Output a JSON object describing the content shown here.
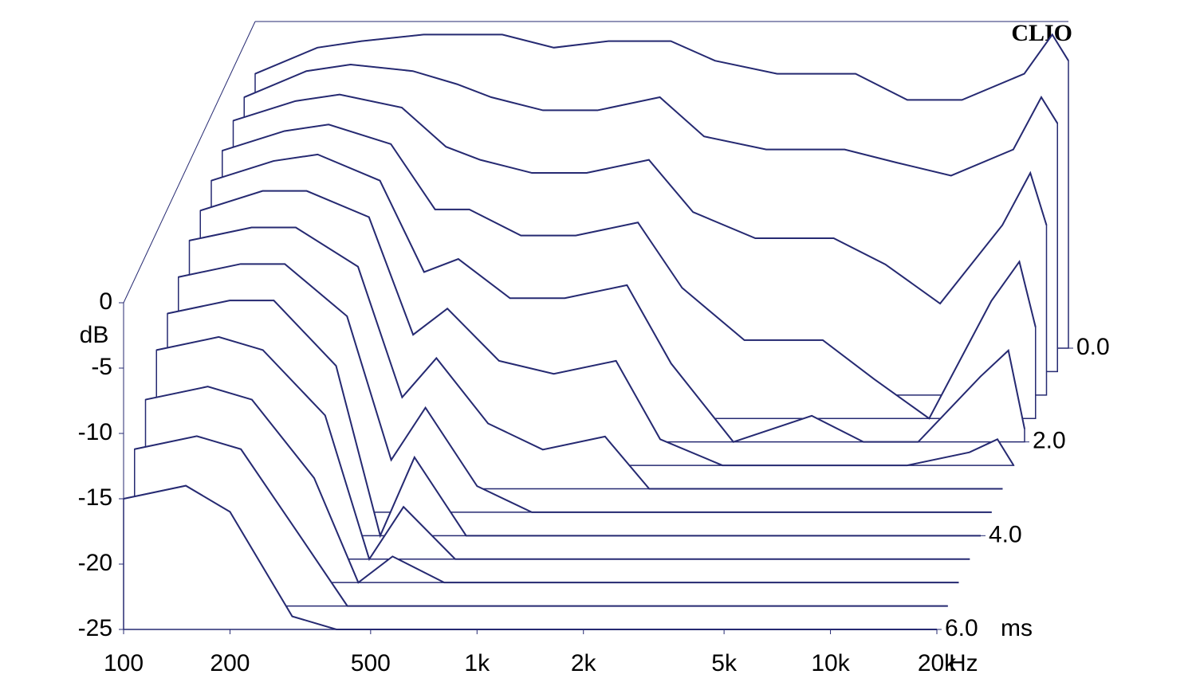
{
  "chart_data": {
    "type": "waterfall",
    "brand": "CLIO",
    "y_label": "dB",
    "x_unit": "Hz",
    "t_unit": "ms",
    "color": "#262a72",
    "x": [
      100,
      150,
      200,
      300,
      400,
      500,
      700,
      1000,
      1500,
      2000,
      3000,
      5000,
      7000,
      10000,
      15000,
      18000,
      20000
    ],
    "xlim": [
      100,
      20000
    ],
    "ylim": [
      -25,
      0
    ],
    "tlim": [
      0,
      6
    ],
    "xticks": [
      100,
      200,
      500,
      {
        "value": 1000,
        "label": "1k"
      },
      {
        "value": 2000,
        "label": "2k"
      },
      {
        "value": 5000,
        "label": "5k"
      },
      {
        "value": 10000,
        "label": "10k"
      },
      {
        "value": 20000,
        "label": "20k"
      }
    ],
    "yticks": [
      0,
      -5,
      -10,
      -15,
      -20,
      -25
    ],
    "tticks": [
      {
        "value": 0,
        "label": "0.0"
      },
      {
        "value": 2,
        "label": "2.0"
      },
      {
        "value": 4,
        "label": "4.0"
      },
      {
        "value": 6,
        "label": "6.0"
      }
    ],
    "series": [
      {
        "time": 0,
        "values": [
          -4,
          -2,
          -1.5,
          -1,
          -1,
          -1,
          -2,
          -1.5,
          -1.5,
          -3,
          -4,
          -4,
          -6,
          -6,
          -4,
          -1,
          -3
        ]
      },
      {
        "time": 0.5,
        "values": [
          -4,
          -2,
          -1.5,
          -2,
          -3,
          -4,
          -5,
          -5,
          -4,
          -7,
          -8,
          -8,
          -9,
          -10,
          -8,
          -4,
          -6
        ]
      },
      {
        "time": 1,
        "values": [
          -4,
          -2.5,
          -2,
          -3,
          -6,
          -7,
          -8,
          -8,
          -7,
          -11,
          -13,
          -13,
          -15,
          -18,
          -12,
          -8,
          -12
        ]
      },
      {
        "time": 1.5,
        "values": [
          -4.5,
          -3,
          -2.5,
          -4,
          -9,
          -9,
          -11,
          -11,
          -10,
          -15,
          -19,
          -19,
          -22,
          -25,
          -16,
          -13,
          -18
        ]
      },
      {
        "time": 2,
        "values": [
          -5,
          -3.5,
          -3,
          -5,
          -12,
          -11,
          -14,
          -14,
          -13,
          -19,
          -25,
          -23,
          -25,
          -25,
          -20,
          -18,
          -24
        ]
      },
      {
        "time": 2.5,
        "values": [
          -5.5,
          -4,
          -4,
          -6,
          -15,
          -13,
          -17,
          -18,
          -17,
          -23,
          -25,
          -25,
          -25,
          -25,
          -24,
          -23,
          -25
        ]
      },
      {
        "time": 3,
        "values": [
          -6,
          -5,
          -5,
          -8,
          -18,
          -15,
          -20,
          -22,
          -21,
          -25,
          -25,
          -25,
          -25,
          -25,
          -25,
          -25,
          -25
        ]
      },
      {
        "time": 3.5,
        "values": [
          -7,
          -6,
          -6,
          -10,
          -21,
          -17,
          -23,
          -25,
          -25,
          -25,
          -25,
          -25,
          -25,
          -25,
          -25,
          -25,
          -25
        ]
      },
      {
        "time": 4,
        "values": [
          -8,
          -7,
          -7,
          -12,
          -25,
          -19,
          -25,
          -25,
          -25,
          -25,
          -25,
          -25,
          -25,
          -25,
          -25,
          -25,
          -25
        ]
      },
      {
        "time": 4.5,
        "values": [
          -9,
          -8,
          -9,
          -14,
          -25,
          -21,
          -25,
          -25,
          -25,
          -25,
          -25,
          -25,
          -25,
          -25,
          -25,
          -25,
          -25
        ]
      },
      {
        "time": 5,
        "values": [
          -11,
          -10,
          -11,
          -17,
          -25,
          -23,
          -25,
          -25,
          -25,
          -25,
          -25,
          -25,
          -25,
          -25,
          -25,
          -25,
          -25
        ]
      },
      {
        "time": 5.5,
        "values": [
          -13,
          -12,
          -13,
          -20,
          -25,
          -25,
          -25,
          -25,
          -25,
          -25,
          -25,
          -25,
          -25,
          -25,
          -25,
          -25,
          -25
        ]
      },
      {
        "time": 6,
        "values": [
          -15,
          -14,
          -16,
          -24,
          -25,
          -25,
          -25,
          -25,
          -25,
          -25,
          -25,
          -25,
          -25,
          -25,
          -25,
          -25,
          -25
        ]
      }
    ]
  }
}
